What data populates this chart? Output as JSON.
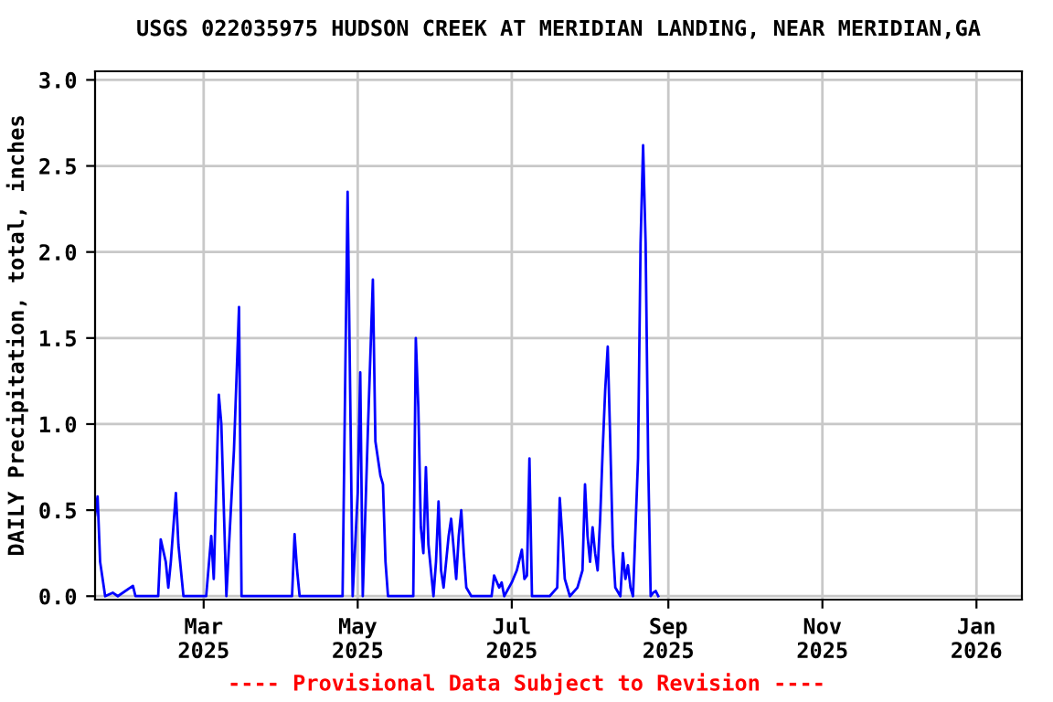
{
  "chart_data": {
    "type": "line",
    "title": "USGS 022035975 HUDSON CREEK AT MERIDIAN LANDING, NEAR MERIDIAN,GA",
    "ylabel": "DAILY Precipitation, total, inches",
    "annotations": [
      "---- Provisional Data Subject to Revision ----"
    ],
    "x": [
      "2025-01-17",
      "2025-01-18",
      "2025-01-19",
      "2025-01-21",
      "2025-01-24",
      "2025-01-26",
      "2025-02-01",
      "2025-02-02",
      "2025-02-11",
      "2025-02-12",
      "2025-02-14",
      "2025-02-15",
      "2025-02-16",
      "2025-02-18",
      "2025-02-19",
      "2025-02-21",
      "2025-03-02",
      "2025-03-04",
      "2025-03-05",
      "2025-03-07",
      "2025-03-08",
      "2025-03-10",
      "2025-03-13",
      "2025-03-15",
      "2025-03-16",
      "2025-04-05",
      "2025-04-06",
      "2025-04-07",
      "2025-04-08",
      "2025-04-25",
      "2025-04-26",
      "2025-04-27",
      "2025-04-28",
      "2025-04-29",
      "2025-05-01",
      "2025-05-02",
      "2025-05-03",
      "2025-05-05",
      "2025-05-07",
      "2025-05-08",
      "2025-05-10",
      "2025-05-11",
      "2025-05-12",
      "2025-05-13",
      "2025-05-23",
      "2025-05-24",
      "2025-05-25",
      "2025-05-26",
      "2025-05-27",
      "2025-05-28",
      "2025-05-29",
      "2025-05-31",
      "2025-06-01",
      "2025-06-02",
      "2025-06-03",
      "2025-06-04",
      "2025-06-06",
      "2025-06-07",
      "2025-06-09",
      "2025-06-10",
      "2025-06-11",
      "2025-06-12",
      "2025-06-13",
      "2025-06-15",
      "2025-06-23",
      "2025-06-24",
      "2025-06-26",
      "2025-06-27",
      "2025-06-28",
      "2025-07-01",
      "2025-07-03",
      "2025-07-05",
      "2025-07-06",
      "2025-07-07",
      "2025-07-08",
      "2025-07-09",
      "2025-07-16",
      "2025-07-19",
      "2025-07-20",
      "2025-07-21",
      "2025-07-22",
      "2025-07-24",
      "2025-07-27",
      "2025-07-29",
      "2025-07-30",
      "2025-07-31",
      "2025-08-01",
      "2025-08-02",
      "2025-08-03",
      "2025-08-04",
      "2025-08-05",
      "2025-08-06",
      "2025-08-07",
      "2025-08-08",
      "2025-08-09",
      "2025-08-10",
      "2025-08-11",
      "2025-08-13",
      "2025-08-14",
      "2025-08-15",
      "2025-08-16",
      "2025-08-17",
      "2025-08-18",
      "2025-08-20",
      "2025-08-21",
      "2025-08-22",
      "2025-08-23",
      "2025-08-24",
      "2025-08-25",
      "2025-08-26",
      "2025-08-27",
      "2025-08-28"
    ],
    "series": [
      {
        "color": "#0000ff",
        "values": [
          0.47,
          0.58,
          0.2,
          0,
          0.02,
          0,
          0.06,
          0,
          0,
          0.33,
          0.2,
          0.05,
          0.2,
          0.6,
          0.3,
          0,
          0,
          0.35,
          0.1,
          1.17,
          1.0,
          0,
          0.85,
          1.68,
          0,
          0,
          0.36,
          0.15,
          0,
          0,
          1.2,
          2.35,
          1.2,
          0,
          0.6,
          1.3,
          0,
          0.95,
          1.84,
          0.9,
          0.7,
          0.65,
          0.2,
          0,
          0,
          1.5,
          1.1,
          0.4,
          0.25,
          0.75,
          0.3,
          0,
          0.2,
          0.55,
          0.15,
          0.05,
          0.35,
          0.45,
          0.1,
          0.35,
          0.5,
          0.25,
          0.05,
          0,
          0,
          0.12,
          0.05,
          0.08,
          0,
          0.08,
          0.15,
          0.27,
          0.1,
          0.12,
          0.8,
          0,
          0,
          0.05,
          0.57,
          0.35,
          0.1,
          0,
          0.05,
          0.15,
          0.65,
          0.35,
          0.2,
          0.4,
          0.25,
          0.15,
          0.45,
          0.85,
          1.2,
          1.45,
          0.9,
          0.3,
          0.05,
          0,
          0.25,
          0.1,
          0.18,
          0.05,
          0,
          0.8,
          2.05,
          2.62,
          2.05,
          0.8,
          0,
          0.02,
          0.03,
          0
        ]
      }
    ],
    "xlim": [
      "2025-01-17",
      "2026-01-19"
    ],
    "xticks": [
      {
        "value": "2025-03-01",
        "label": "Mar\n2025"
      },
      {
        "value": "2025-05-01",
        "label": "May\n2025"
      },
      {
        "value": "2025-07-01",
        "label": "Jul\n2025"
      },
      {
        "value": "2025-09-01",
        "label": "Sep\n2025"
      },
      {
        "value": "2025-11-01",
        "label": "Nov\n2025"
      },
      {
        "value": "2026-01-01",
        "label": "Jan\n2026"
      }
    ],
    "ylim": [
      -0.02,
      3.05
    ],
    "yticks": [
      {
        "value": 0,
        "label": "0.0"
      },
      {
        "value": 0.5,
        "label": "0.5"
      },
      {
        "value": 1,
        "label": "1.0"
      },
      {
        "value": 1.5,
        "label": "1.5"
      },
      {
        "value": 2,
        "label": "2.0"
      },
      {
        "value": 2.5,
        "label": "2.5"
      },
      {
        "value": 3,
        "label": "3.0"
      }
    ],
    "grid": true,
    "legend": false
  }
}
